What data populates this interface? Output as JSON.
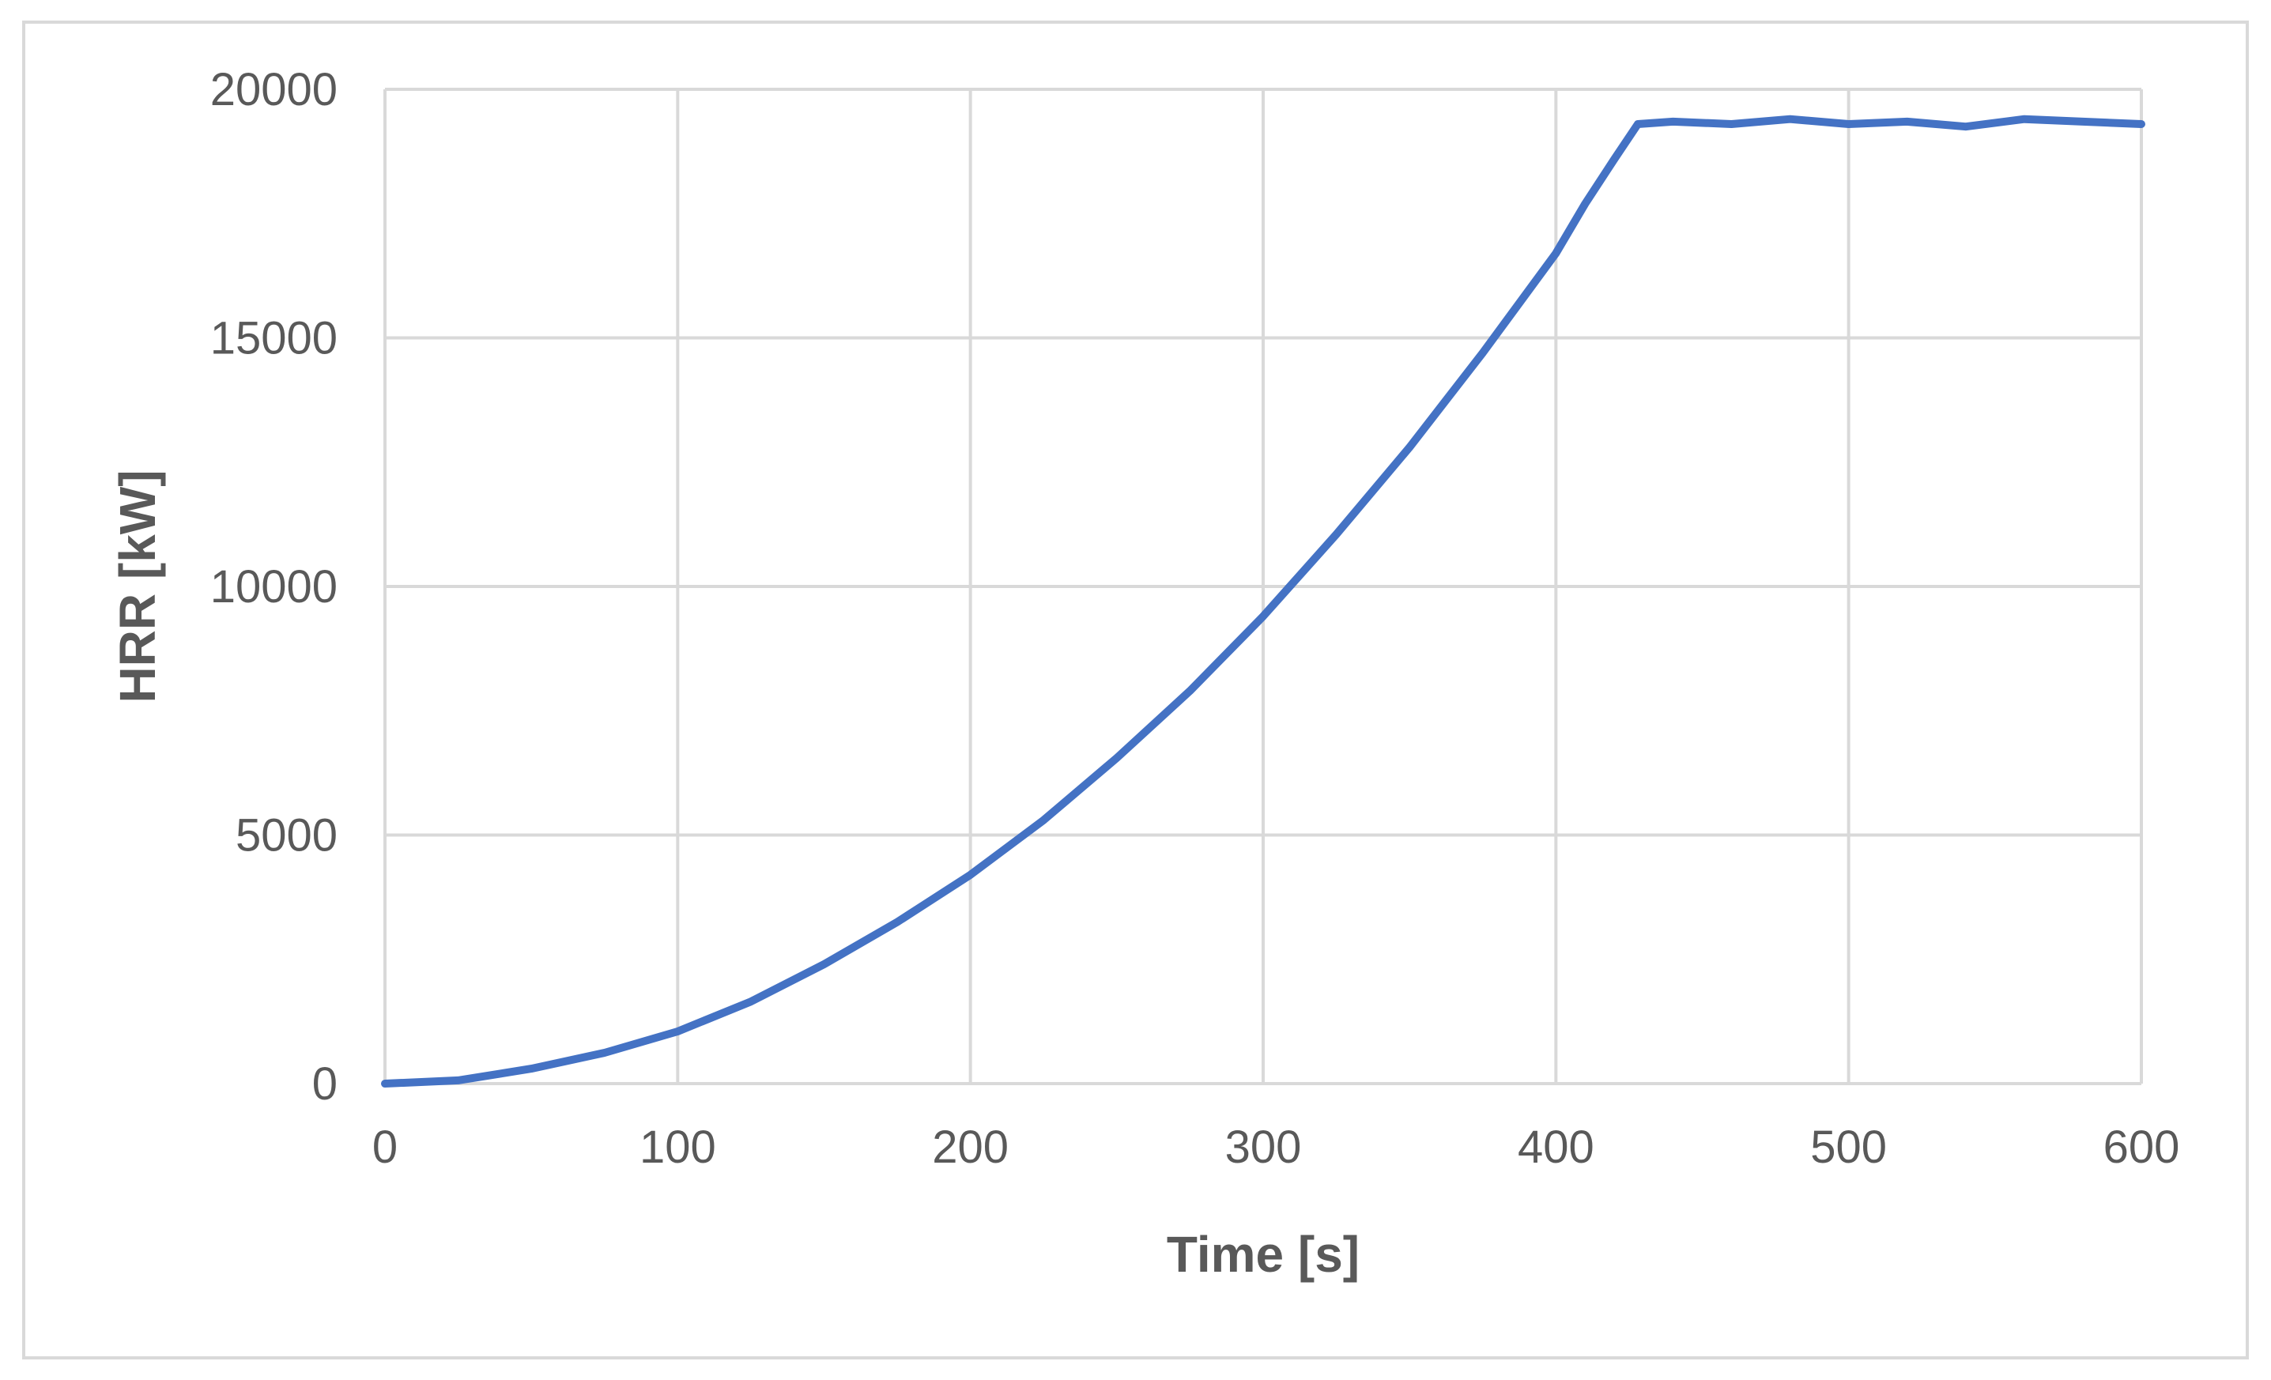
{
  "chart_data": {
    "type": "line",
    "title": "",
    "xlabel": "Time [s]",
    "ylabel": "HRR [kW]",
    "xlim": [
      0,
      600
    ],
    "ylim": [
      0,
      20000
    ],
    "x_ticks": [
      "0",
      "100",
      "200",
      "300",
      "400",
      "500",
      "600"
    ],
    "y_ticks": [
      "0",
      "5000",
      "10000",
      "15000",
      "20000"
    ],
    "grid": true,
    "legend": "none",
    "series": [
      {
        "color": "#4472C4",
        "x": [
          0,
          25,
          50,
          75,
          100,
          125,
          150,
          175,
          200,
          225,
          250,
          275,
          300,
          325,
          350,
          375,
          400,
          410,
          420,
          428,
          440,
          460,
          480,
          500,
          520,
          540,
          560,
          580,
          600
        ],
        "y": [
          0,
          65,
          300,
          620,
          1050,
          1650,
          2400,
          3250,
          4200,
          5300,
          6550,
          7900,
          9400,
          11050,
          12800,
          14700,
          16700,
          17700,
          18600,
          19300,
          19350,
          19300,
          19400,
          19300,
          19350,
          19250,
          19400,
          19350,
          19300
        ]
      }
    ]
  }
}
